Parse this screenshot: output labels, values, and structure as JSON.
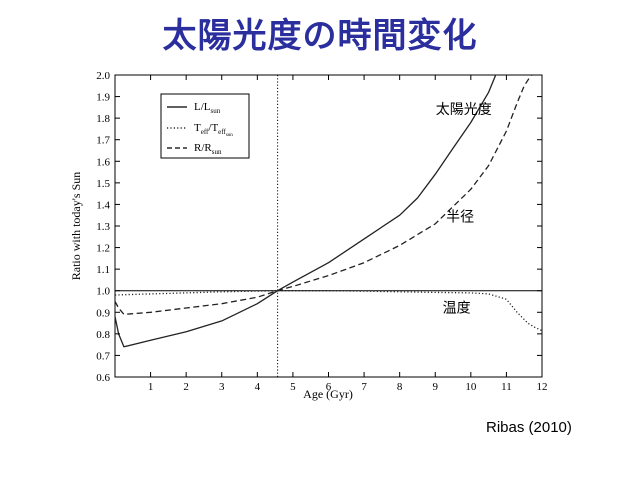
{
  "slide": {
    "title": "太陽光度の時間変化",
    "citation": "Ribas (2010)"
  },
  "chart_data": {
    "type": "line",
    "xlabel": "Age (Gyr)",
    "ylabel": "Ratio with today's Sun",
    "xlim": [
      0,
      12
    ],
    "ylim": [
      0.6,
      2.0
    ],
    "x_ticks": [
      1,
      2,
      3,
      4,
      5,
      6,
      7,
      8,
      9,
      10,
      11,
      12
    ],
    "y_ticks": [
      0.6,
      0.7,
      0.8,
      0.9,
      1.0,
      1.1,
      1.2,
      1.3,
      1.4,
      1.5,
      1.6,
      1.7,
      1.8,
      1.9,
      2.0
    ],
    "grid": false,
    "legend_position": "top-left",
    "legend": [
      {
        "main": "L/L",
        "sub": "sun",
        "style": "solid"
      },
      {
        "main": "T",
        "sub": "eff",
        "mid": "/T",
        "sub2": "eff",
        "subsub": "sun",
        "style": "dotted"
      },
      {
        "main": "R/R",
        "sub": "sun",
        "style": "dashed"
      }
    ],
    "reference_lines": {
      "hline_y": 1.0,
      "vline_x": 4.57
    },
    "series": [
      {
        "key": "luminosity",
        "style": "solid",
        "x": [
          0.0,
          0.1,
          0.25,
          1,
          2,
          3,
          4,
          4.57,
          5,
          6,
          7,
          8,
          8.5,
          9,
          9.5,
          10,
          10.5,
          10.7
        ],
        "y": [
          0.88,
          0.8,
          0.74,
          0.77,
          0.81,
          0.86,
          0.94,
          1.0,
          1.04,
          1.13,
          1.24,
          1.35,
          1.43,
          1.54,
          1.66,
          1.78,
          1.92,
          2.0
        ]
      },
      {
        "key": "temperature",
        "style": "dotted",
        "x": [
          0,
          1,
          2,
          3,
          4,
          4.57,
          5,
          6,
          7,
          8,
          9,
          10,
          10.5,
          11,
          11.3,
          11.6,
          11.8,
          12
        ],
        "y": [
          0.98,
          0.985,
          0.99,
          0.995,
          0.998,
          1.0,
          1.0,
          1.0,
          0.998,
          0.995,
          0.992,
          0.99,
          0.985,
          0.96,
          0.9,
          0.85,
          0.83,
          0.815
        ]
      },
      {
        "key": "radius",
        "style": "dashed",
        "x": [
          0.0,
          0.1,
          0.25,
          1,
          2,
          3,
          4,
          4.57,
          5,
          6,
          7,
          8,
          9,
          9.5,
          10,
          10.5,
          11,
          11.3,
          11.5,
          11.7
        ],
        "y": [
          0.95,
          0.92,
          0.89,
          0.9,
          0.92,
          0.94,
          0.97,
          1.0,
          1.02,
          1.07,
          1.13,
          1.21,
          1.31,
          1.39,
          1.47,
          1.58,
          1.74,
          1.87,
          1.95,
          2.0
        ]
      }
    ],
    "annotations": [
      {
        "key": "luminosity",
        "text": "太陽光度",
        "x": 9.8,
        "y": 1.82
      },
      {
        "key": "radius",
        "text": "半径",
        "x": 9.7,
        "y": 1.32
      },
      {
        "key": "temperature",
        "text": "温度",
        "x": 9.6,
        "y": 0.9
      }
    ]
  }
}
